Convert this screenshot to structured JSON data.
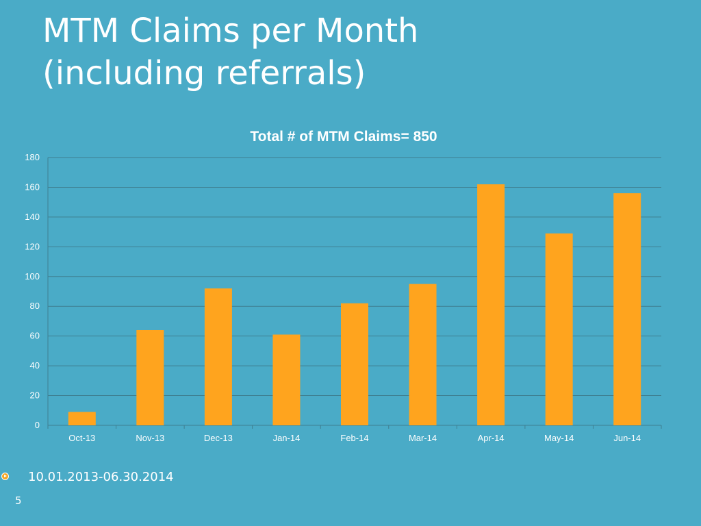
{
  "slide": {
    "title_line1": "MTM Claims per Month",
    "title_line2": "(including referrals)",
    "footer_text": "10.01.2013-06.30.2014",
    "page_number": "5"
  },
  "colors": {
    "background": "#4AABC7",
    "bar": "#FFA41E",
    "gridline": "#3F7F91",
    "text": "#FFFFFF"
  },
  "chart_data": {
    "type": "bar",
    "title": "Total # of MTM Claims= 850",
    "xlabel": "",
    "ylabel": "",
    "categories": [
      "Oct-13",
      "Nov-13",
      "Dec-13",
      "Jan-14",
      "Feb-14",
      "Mar-14",
      "Apr-14",
      "May-14",
      "Jun-14"
    ],
    "values": [
      9,
      64,
      92,
      61,
      82,
      95,
      162,
      129,
      156
    ],
    "ylim": [
      0,
      180
    ],
    "yticks": [
      0,
      20,
      40,
      60,
      80,
      100,
      120,
      140,
      160,
      180
    ],
    "grid": true,
    "legend": "none"
  }
}
